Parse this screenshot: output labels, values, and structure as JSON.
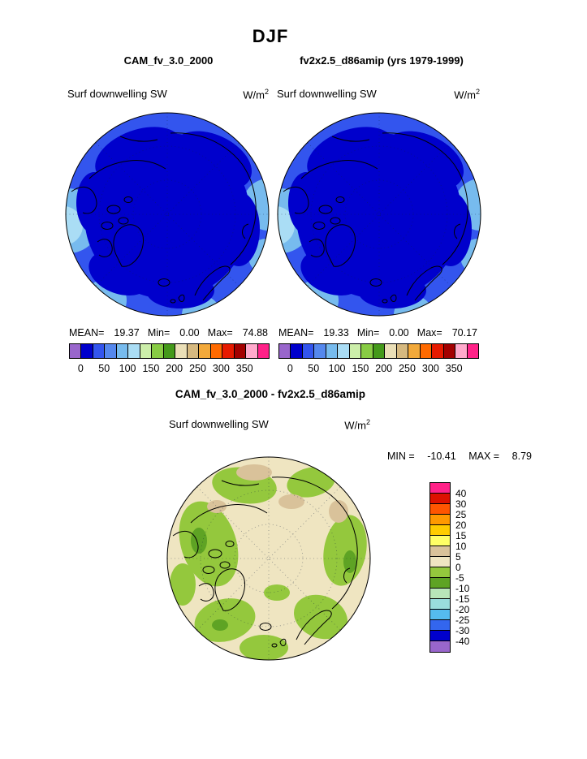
{
  "title": "DJF",
  "colors": {
    "map_ring_blue": "#3355EE",
    "map_deep_blue": "#0000CC",
    "map_light_blue": "#77BBEE",
    "map_pale_blue": "#AADDF5",
    "diff_bg_beige": "#EFE5C1",
    "diff_green": "#94C83D",
    "diff_green_dark": "#5EA324",
    "diff_tan": "#D9C29A"
  },
  "top_panels": {
    "left": {
      "model": "CAM_fv_3.0_2000",
      "field": "Surf downwelling SW",
      "units_base": "W/m",
      "units_exp": "2",
      "stats": {
        "mean_label": "MEAN=",
        "mean": "19.37",
        "min_label": "Min=",
        "min": "0.00",
        "max_label": "Max=",
        "max": "74.88"
      }
    },
    "right": {
      "model": "fv2x2.5_d86amip (yrs 1979-1999)",
      "field": "Surf downwelling SW",
      "units_base": "W/m",
      "units_exp": "2",
      "stats": {
        "mean_label": "MEAN=",
        "mean": "19.33",
        "min_label": "Min=",
        "min": "0.00",
        "max_label": "Max=",
        "max": "70.17"
      }
    }
  },
  "colorbar": {
    "ticks": [
      "0",
      "50",
      "100",
      "150",
      "200",
      "250",
      "300",
      "350"
    ],
    "colors": [
      "#9966CC",
      "#0000CC",
      "#3355EE",
      "#5588EE",
      "#77BBEE",
      "#AADDF5",
      "#CCEEAA",
      "#88CC44",
      "#44991A",
      "#EADFB7",
      "#D6B980",
      "#F2A93B",
      "#FF6A00",
      "#E61A00",
      "#A30000",
      "#FFAACC",
      "#FF2288"
    ]
  },
  "diff_panel": {
    "title": "CAM_fv_3.0_2000 - fv2x2.5_d86amip",
    "field": "Surf downwelling SW",
    "units_base": "W/m",
    "units_exp": "2",
    "min_label": "MIN =",
    "min_value": "-10.41",
    "max_label": "MAX =",
    "max_value": "8.79"
  },
  "diff_colorbar": {
    "labels": [
      "40",
      "30",
      "25",
      "20",
      "15",
      "10",
      "5",
      "0",
      "-5",
      "-10",
      "-15",
      "-20",
      "-25",
      "-30",
      "-40"
    ],
    "colors": [
      "#FF2288",
      "#DD1100",
      "#FF5500",
      "#FF9900",
      "#FFCC00",
      "#FFFF66",
      "#D9C29A",
      "#EFE5C1",
      "#94C83D",
      "#5EA324",
      "#B8E6B8",
      "#99DDDD",
      "#55BBEE",
      "#3366EE",
      "#0000CC",
      "#9966CC"
    ]
  },
  "chart_data": [
    {
      "type": "heatmap",
      "subtype": "polar_stereographic_map_north",
      "season": "DJF",
      "title": "CAM_fv_3.0_2000",
      "variable": "Surf downwelling SW",
      "units": "W/m2",
      "stats": {
        "mean": 19.37,
        "min": 0.0,
        "max": 74.88
      },
      "colorbar_ticks": [
        0,
        50,
        100,
        150,
        200,
        250,
        300,
        350
      ],
      "palette": [
        "#9966CC",
        "#0000CC",
        "#3355EE",
        "#5588EE",
        "#77BBEE",
        "#AADDF5",
        "#CCEEAA",
        "#88CC44",
        "#44991A",
        "#EADFB7",
        "#D6B980",
        "#F2A93B",
        "#FF6A00",
        "#E61A00",
        "#A30000",
        "#FFAACC",
        "#FF2288"
      ],
      "notes": "Arctic view: near-zero downwelling SW (deep blue, 0-25) over polar-night interior, lighter blues (25-100) toward sunlit rim"
    },
    {
      "type": "heatmap",
      "subtype": "polar_stereographic_map_north",
      "season": "DJF",
      "title": "fv2x2.5_d86amip (yrs 1979-1999)",
      "variable": "Surf downwelling SW",
      "units": "W/m2",
      "stats": {
        "mean": 19.33,
        "min": 0.0,
        "max": 70.17
      },
      "colorbar_ticks": [
        0,
        50,
        100,
        150,
        200,
        250,
        300,
        350
      ],
      "palette": [
        "#9966CC",
        "#0000CC",
        "#3355EE",
        "#5588EE",
        "#77BBEE",
        "#AADDF5",
        "#CCEEAA",
        "#88CC44",
        "#44991A",
        "#EADFB7",
        "#D6B980",
        "#F2A93B",
        "#FF6A00",
        "#E61A00",
        "#A30000",
        "#FFAACC",
        "#FF2288"
      ],
      "notes": "Nearly identical pattern to left panel"
    },
    {
      "type": "heatmap",
      "subtype": "polar_stereographic_map_difference",
      "season": "DJF",
      "title": "CAM_fv_3.0_2000 - fv2x2.5_d86amip",
      "variable": "Surf downwelling SW",
      "units": "W/m2",
      "stats": {
        "min": -10.41,
        "max": 8.79
      },
      "levels": [
        40,
        30,
        25,
        20,
        15,
        10,
        5,
        0,
        -5,
        -10,
        -15,
        -20,
        -25,
        -30,
        -40
      ],
      "palette": [
        "#FF2288",
        "#DD1100",
        "#FF5500",
        "#FF9900",
        "#FFCC00",
        "#FFFF66",
        "#D9C29A",
        "#EFE5C1",
        "#94C83D",
        "#5EA324",
        "#B8E6B8",
        "#99DDDD",
        "#55BBEE",
        "#3366EE",
        "#0000CC",
        "#9966CC"
      ],
      "notes": "Mostly 0 to 5 (beige) with -10 to 0 (green) patches around periphery and 5 to 10 (tan) patches near top"
    }
  ]
}
